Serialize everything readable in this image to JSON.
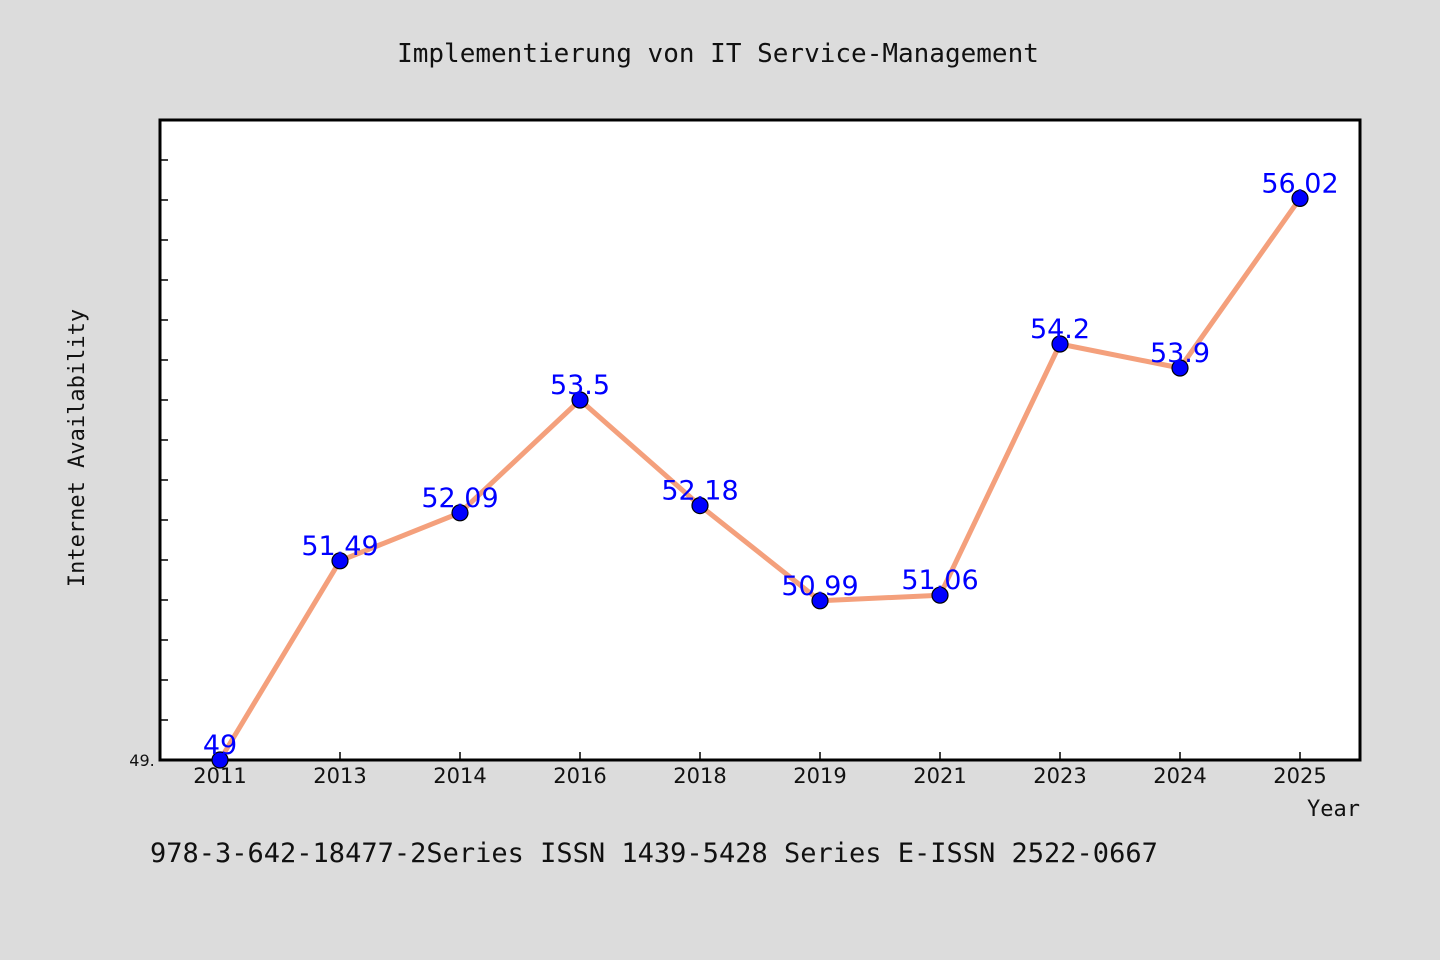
{
  "chart_data": {
    "type": "line",
    "title": "Implementierung von IT Service-Management",
    "xlabel": "Year",
    "ylabel": "Internet Availability",
    "x": [
      "2011",
      "2013",
      "2014",
      "2016",
      "2018",
      "2019",
      "2021",
      "2023",
      "2024",
      "2025"
    ],
    "series": [
      {
        "values": [
          49,
          51.49,
          52.09,
          53.5,
          52.18,
          50.99,
          51.06,
          54.2,
          53.9,
          56.02
        ],
        "labels": [
          "49",
          "51.49",
          "52.09",
          "53.5",
          "52.18",
          "50.99",
          "51.06",
          "54.2",
          "53.9",
          "56.02"
        ],
        "line_color": "#f4a07c",
        "marker_color": "#0000ff",
        "label_color": "#0000ff"
      }
    ],
    "y_tick_labels": [
      "49."
    ],
    "ylim": [
      49,
      57
    ],
    "grid": false,
    "legend": "none"
  },
  "footer": {
    "text": "978-3-642-18477-2Series ISSN 1439-5428 Series E-ISSN 2522-0667"
  }
}
